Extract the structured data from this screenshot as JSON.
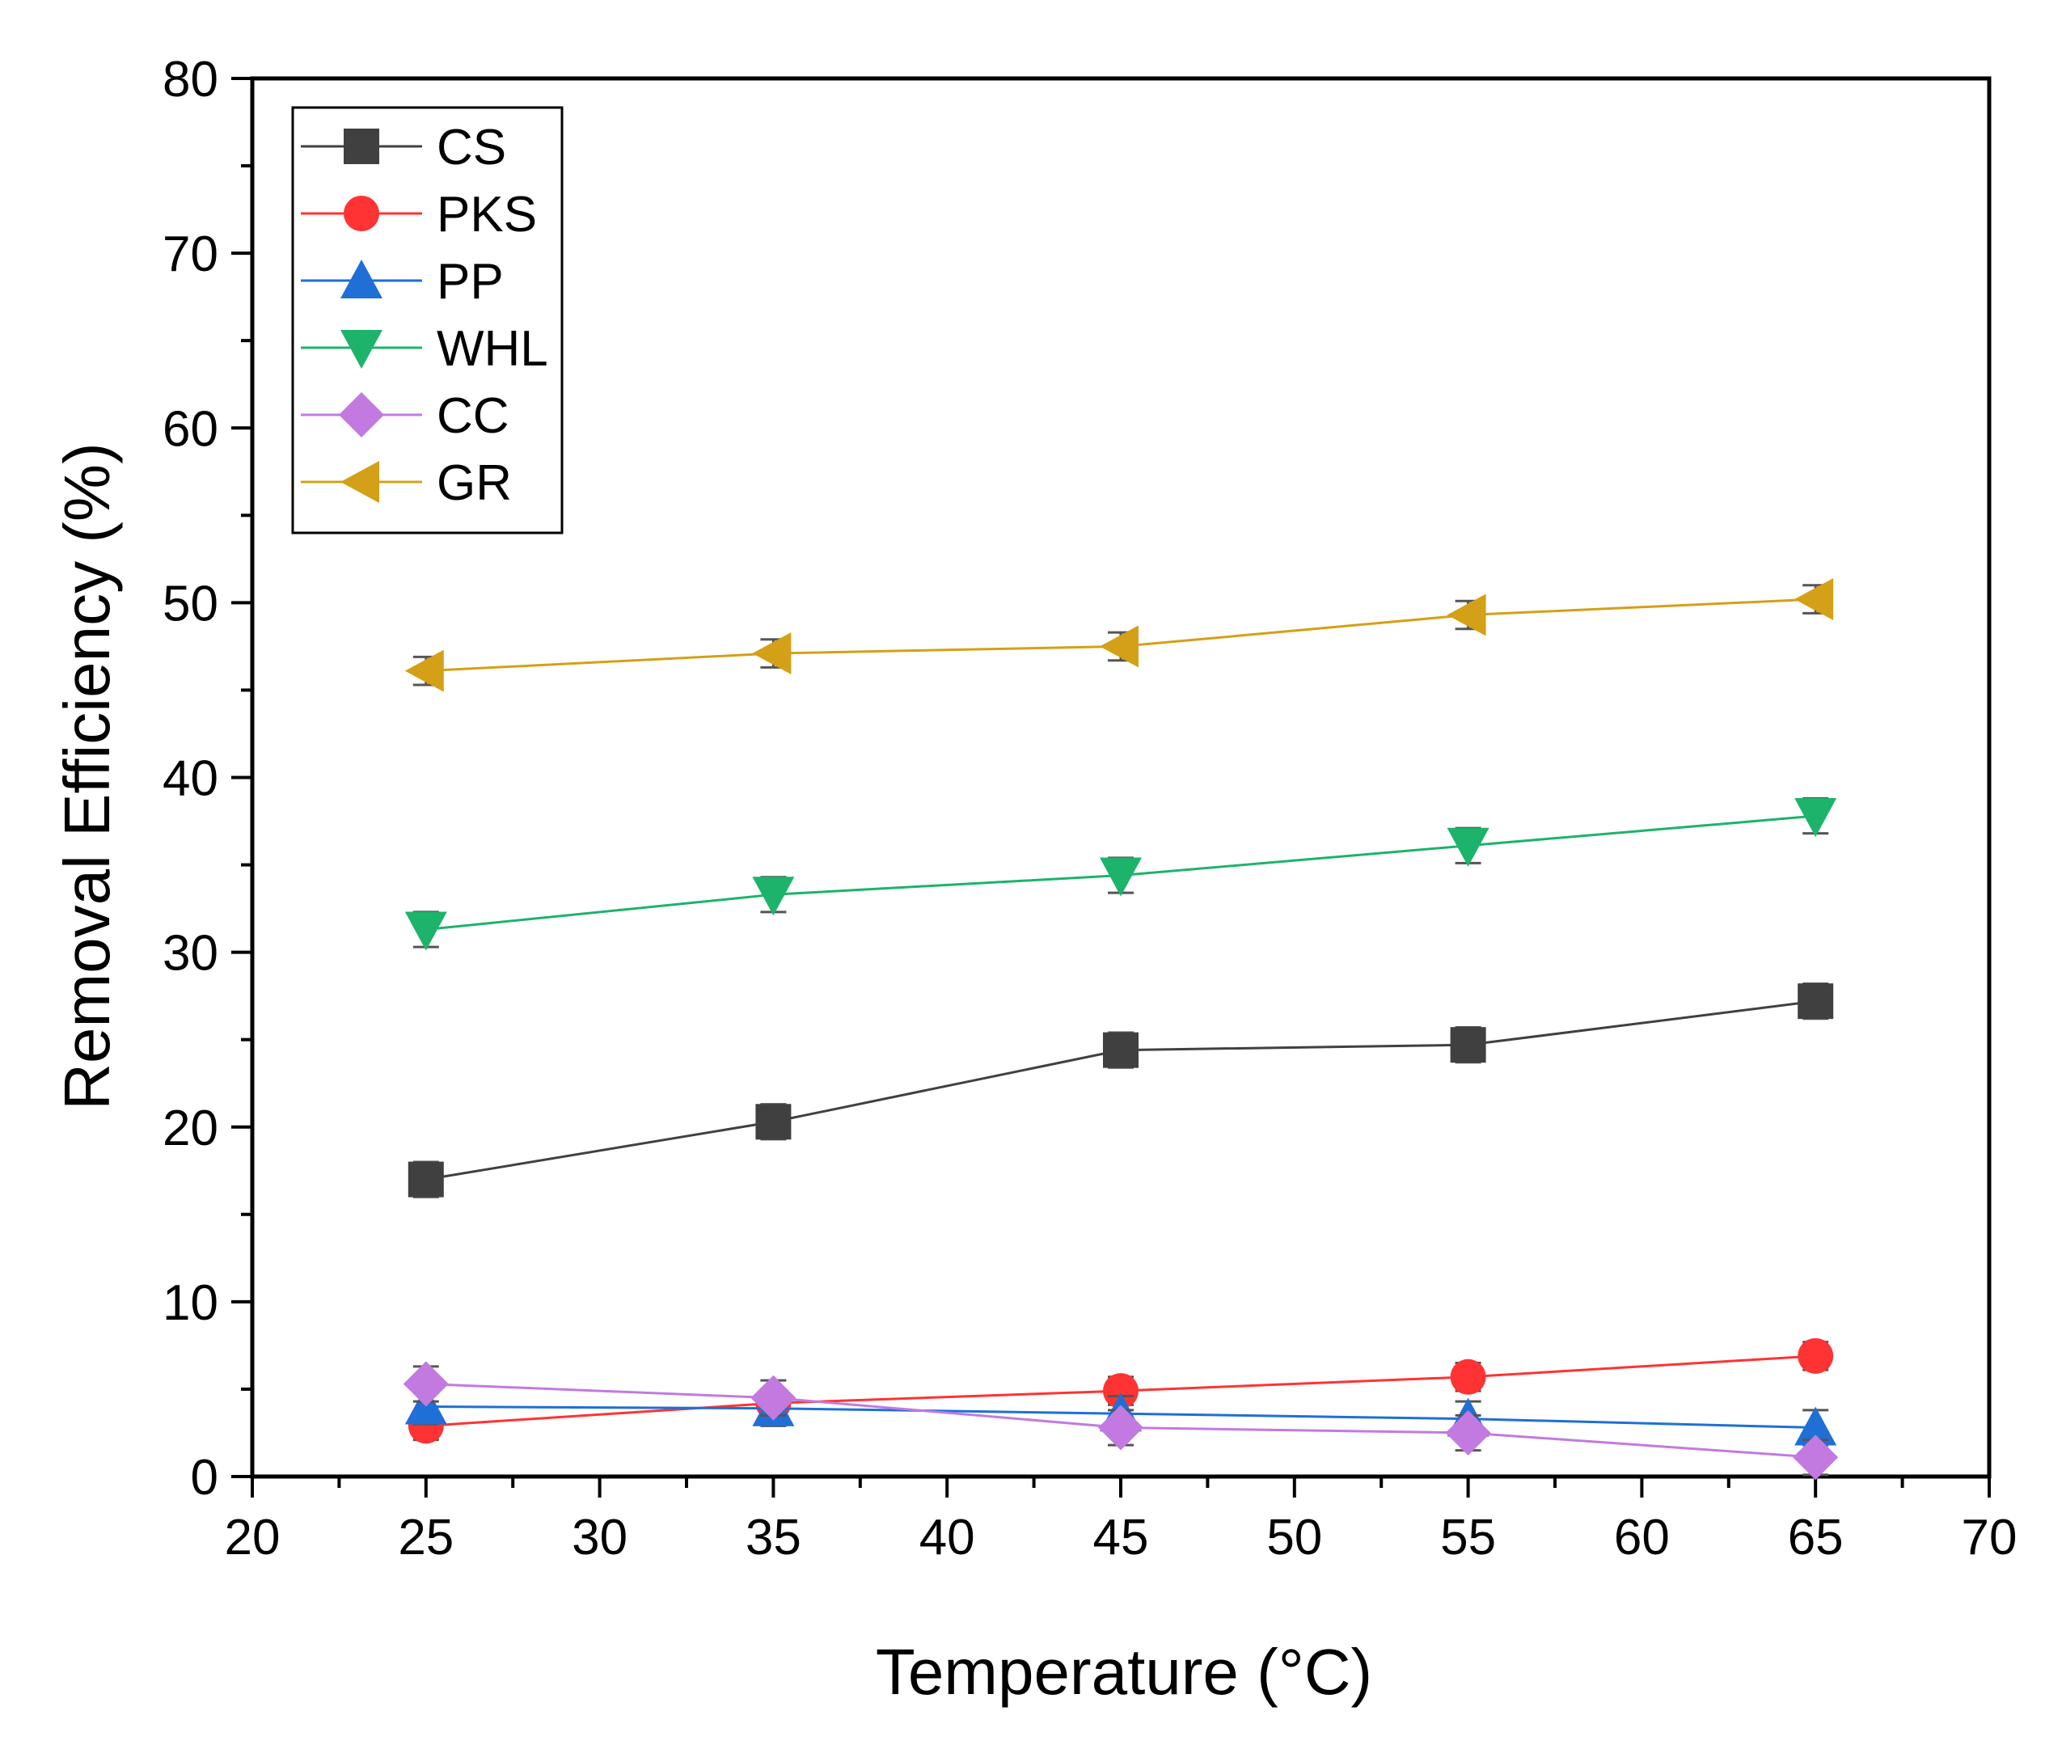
{
  "chart_data": {
    "type": "line",
    "title": "",
    "xlabel": "Temperature (°C)",
    "ylabel": "Removal Efficiency (%)",
    "xlim": [
      20,
      70
    ],
    "ylim": [
      0,
      80
    ],
    "x_ticks": [
      "20",
      "25",
      "30",
      "35",
      "40",
      "45",
      "50",
      "55",
      "60",
      "65",
      "70"
    ],
    "y_ticks": [
      "0",
      "10",
      "20",
      "30",
      "40",
      "50",
      "60",
      "70",
      "80"
    ],
    "x": [
      25,
      35,
      45,
      55,
      65
    ],
    "grid": false,
    "legend_position": "top-left",
    "series": [
      {
        "name": "CS",
        "marker": "square",
        "color": "#404040",
        "values": [
          17.0,
          20.3,
          24.4,
          24.7,
          27.2
        ],
        "error": [
          1.0,
          1.0,
          1.0,
          1.0,
          1.0
        ]
      },
      {
        "name": "PKS",
        "marker": "circle",
        "color": "#ff3333",
        "values": [
          2.9,
          4.2,
          4.9,
          5.7,
          6.9
        ],
        "error": [
          0.8,
          0.8,
          0.8,
          0.8,
          0.8
        ]
      },
      {
        "name": "PP",
        "marker": "triangle-up",
        "color": "#1f6fd6",
        "values": [
          4.0,
          3.9,
          3.6,
          3.3,
          2.8
        ],
        "error": [
          1.0,
          1.0,
          1.0,
          1.0,
          1.0
        ]
      },
      {
        "name": "WHL",
        "marker": "triangle-down",
        "color": "#1db36b",
        "values": [
          31.3,
          33.3,
          34.4,
          36.1,
          37.8
        ],
        "error": [
          1.0,
          1.0,
          1.0,
          1.0,
          1.0
        ]
      },
      {
        "name": "CC",
        "marker": "diamond",
        "color": "#c27ae0",
        "values": [
          5.3,
          4.5,
          2.8,
          2.5,
          1.1
        ],
        "error": [
          1.0,
          1.0,
          1.0,
          1.0,
          1.0
        ]
      },
      {
        "name": "GR",
        "marker": "triangle-left",
        "color": "#d4a017",
        "values": [
          46.1,
          47.1,
          47.5,
          49.3,
          50.2
        ],
        "error": [
          0.8,
          0.8,
          0.8,
          0.8,
          0.8
        ]
      }
    ]
  }
}
